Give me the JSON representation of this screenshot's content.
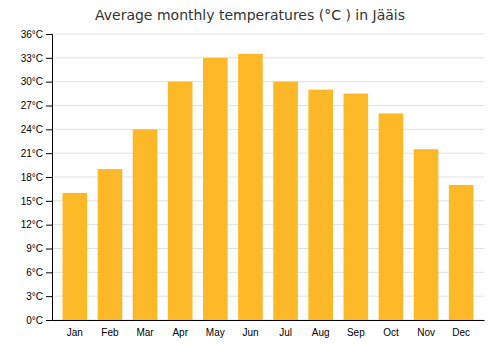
{
  "chart_data": {
    "type": "bar",
    "title": "Average monthly temperatures (°C ) in Jääis",
    "categories": [
      "Jan",
      "Feb",
      "Mar",
      "Apr",
      "May",
      "Jun",
      "Jul",
      "Aug",
      "Sep",
      "Oct",
      "Nov",
      "Dec"
    ],
    "values": [
      16,
      19,
      24,
      30,
      33,
      33.5,
      30,
      29,
      28.5,
      26,
      21.5,
      17
    ],
    "color": "#FDB827",
    "ylim": [
      0,
      36
    ],
    "yticks": [
      {
        "value": 0,
        "label": "0°C"
      },
      {
        "value": 3,
        "label": "3°C"
      },
      {
        "value": 6,
        "label": "6°C"
      },
      {
        "value": 9,
        "label": "9°C"
      },
      {
        "value": 12,
        "label": "12°C"
      },
      {
        "value": 15,
        "label": "15°C"
      },
      {
        "value": 18,
        "label": "18°C"
      },
      {
        "value": 21,
        "label": "21°C"
      },
      {
        "value": 24,
        "label": "24°C"
      },
      {
        "value": 27,
        "label": "27°C"
      },
      {
        "value": 30,
        "label": "30°C"
      },
      {
        "value": 33,
        "label": "33°C"
      },
      {
        "value": 36,
        "label": "36°C"
      }
    ],
    "grid": true
  }
}
